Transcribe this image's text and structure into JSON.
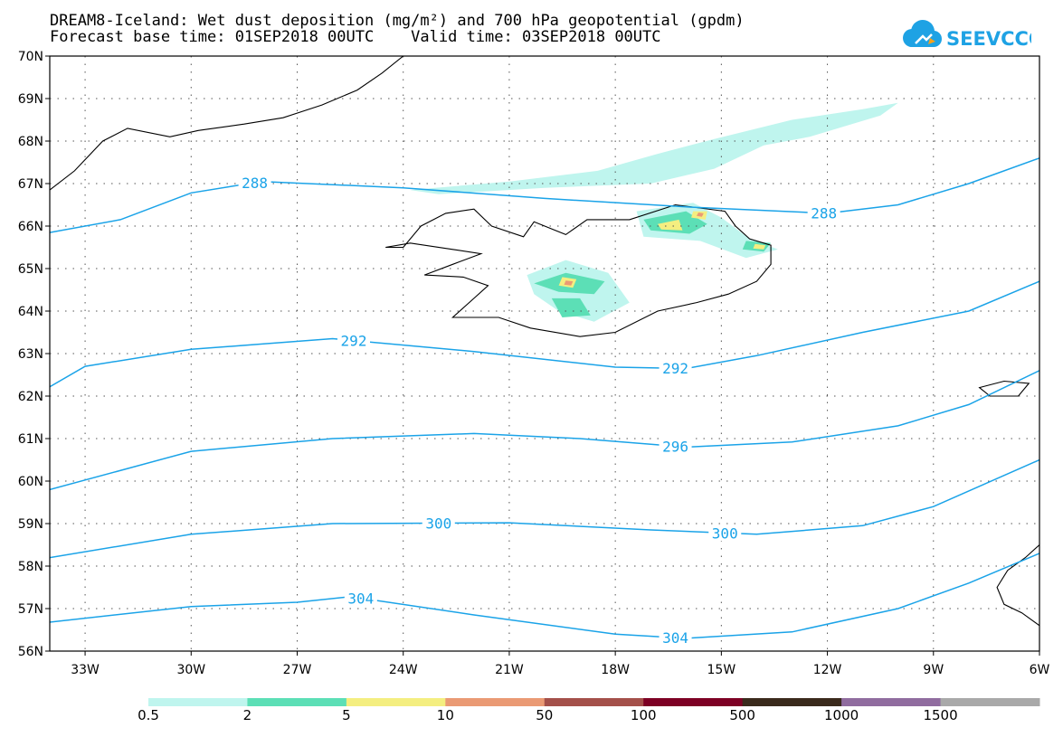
{
  "title_line1": "DREAM8-Iceland: Wet dust deposition (mg/m²) and 700 hPa geopotential (gpdm)",
  "title_line2": "Forecast base time: 01SEP2018 00UTC    Valid time: 03SEP2018 00UTC",
  "logo_text": "SEEVCCC",
  "colors": {
    "contour": "#1aa3e8",
    "coast": "#000000",
    "logo": "#1ea2e4"
  },
  "map": {
    "lon_range": [
      -34.0,
      -6.0
    ],
    "lat_range": [
      56,
      70
    ],
    "lon_ticks": [
      {
        "lon": -33,
        "label": "33W"
      },
      {
        "lon": -30,
        "label": "30W"
      },
      {
        "lon": -27,
        "label": "27W"
      },
      {
        "lon": -24,
        "label": "24W"
      },
      {
        "lon": -21,
        "label": "21W"
      },
      {
        "lon": -18,
        "label": "18W"
      },
      {
        "lon": -15,
        "label": "15W"
      },
      {
        "lon": -12,
        "label": "12W"
      },
      {
        "lon": -9,
        "label": "9W"
      },
      {
        "lon": -6,
        "label": "6W"
      }
    ],
    "lat_ticks": [
      {
        "lat": 56,
        "label": "56N"
      },
      {
        "lat": 57,
        "label": "57N"
      },
      {
        "lat": 58,
        "label": "58N"
      },
      {
        "lat": 59,
        "label": "59N"
      },
      {
        "lat": 60,
        "label": "60N"
      },
      {
        "lat": 61,
        "label": "61N"
      },
      {
        "lat": 62,
        "label": "62N"
      },
      {
        "lat": 63,
        "label": "63N"
      },
      {
        "lat": 64,
        "label": "64N"
      },
      {
        "lat": 65,
        "label": "65N"
      },
      {
        "lat": 66,
        "label": "66N"
      },
      {
        "lat": 67,
        "label": "67N"
      },
      {
        "lat": 68,
        "label": "68N"
      },
      {
        "lat": 69,
        "label": "69N"
      },
      {
        "lat": 70,
        "label": "70N"
      }
    ]
  },
  "contours": [
    {
      "value": "288",
      "label_lons": [
        -28.2,
        -12.1
      ],
      "points": [
        [
          -34.0,
          65.85
        ],
        [
          -32.0,
          66.15
        ],
        [
          -30.0,
          66.78
        ],
        [
          -28.0,
          67.05
        ],
        [
          -24.0,
          66.9
        ],
        [
          -20.0,
          66.65
        ],
        [
          -16.0,
          66.45
        ],
        [
          -12.0,
          66.3
        ],
        [
          -10.0,
          66.5
        ],
        [
          -8.0,
          67.0
        ],
        [
          -6.0,
          67.6
        ]
      ]
    },
    {
      "value": "292",
      "label_lons": [
        -25.4,
        -16.3
      ],
      "points": [
        [
          -34.0,
          62.22
        ],
        [
          -33.0,
          62.7
        ],
        [
          -30.0,
          63.1
        ],
        [
          -26.0,
          63.35
        ],
        [
          -22.0,
          63.05
        ],
        [
          -18.0,
          62.68
        ],
        [
          -16.0,
          62.65
        ],
        [
          -14.0,
          62.95
        ],
        [
          -11.0,
          63.5
        ],
        [
          -8.0,
          64.0
        ],
        [
          -6.0,
          64.7
        ]
      ]
    },
    {
      "value": "296",
      "label_lons": [
        -16.3
      ],
      "points": [
        [
          -34.0,
          59.8
        ],
        [
          -30.0,
          60.7
        ],
        [
          -26.0,
          61.0
        ],
        [
          -22.0,
          61.12
        ],
        [
          -19.0,
          61.0
        ],
        [
          -16.0,
          60.8
        ],
        [
          -13.0,
          60.92
        ],
        [
          -10.0,
          61.3
        ],
        [
          -8.0,
          61.8
        ],
        [
          -6.0,
          62.6
        ]
      ]
    },
    {
      "value": "300",
      "label_lons": [
        -23.0,
        -14.9
      ],
      "points": [
        [
          -34.0,
          58.2
        ],
        [
          -30.0,
          58.75
        ],
        [
          -26.0,
          59.0
        ],
        [
          -21.0,
          59.02
        ],
        [
          -17.0,
          58.85
        ],
        [
          -14.0,
          58.75
        ],
        [
          -11.0,
          58.95
        ],
        [
          -9.0,
          59.4
        ],
        [
          -6.0,
          60.5
        ]
      ]
    },
    {
      "value": "304",
      "label_lons": [
        -25.2,
        -16.3
      ],
      "points": [
        [
          -34.0,
          56.68
        ],
        [
          -30.0,
          57.05
        ],
        [
          -27.0,
          57.15
        ],
        [
          -25.5,
          57.28
        ],
        [
          -22.0,
          56.85
        ],
        [
          -18.0,
          56.4
        ],
        [
          -16.0,
          56.3
        ],
        [
          -13.0,
          56.45
        ],
        [
          -10.0,
          57.0
        ],
        [
          -8.0,
          57.6
        ],
        [
          -6.0,
          58.3
        ]
      ]
    }
  ],
  "colorbar": {
    "levels": [
      "0.5",
      "2",
      "5",
      "10",
      "50",
      "100",
      "500",
      "1000",
      "1500"
    ],
    "colors": [
      "#bff5ee",
      "#5cdfb6",
      "#f4ee80",
      "#ea9a74",
      "#a4504a",
      "#7d0024",
      "#3a2a1c",
      "#906c9f",
      "#a9a9a9"
    ]
  },
  "dust_patches": [
    {
      "level": 0,
      "points": [
        [
          -23.8,
          66.85
        ],
        [
          -21.0,
          67.05
        ],
        [
          -18.5,
          67.3
        ],
        [
          -16.8,
          67.7
        ],
        [
          -15.2,
          68.05
        ],
        [
          -13.0,
          68.5
        ],
        [
          -11.0,
          68.75
        ],
        [
          -10.0,
          68.9
        ],
        [
          -10.5,
          68.6
        ],
        [
          -12.5,
          68.1
        ],
        [
          -13.8,
          67.9
        ],
        [
          -15.2,
          67.35
        ],
        [
          -17.0,
          67.0
        ],
        [
          -20.0,
          66.9
        ],
        [
          -23.0,
          66.75
        ]
      ]
    },
    {
      "level": 0,
      "points": [
        [
          -17.4,
          66.35
        ],
        [
          -15.8,
          66.55
        ],
        [
          -15.0,
          66.2
        ],
        [
          -14.2,
          65.7
        ],
        [
          -13.4,
          65.45
        ],
        [
          -14.3,
          65.25
        ],
        [
          -15.6,
          65.65
        ],
        [
          -17.2,
          65.75
        ]
      ]
    },
    {
      "level": 0,
      "points": [
        [
          -20.5,
          64.85
        ],
        [
          -19.4,
          65.2
        ],
        [
          -18.2,
          64.9
        ],
        [
          -17.6,
          64.2
        ],
        [
          -18.6,
          63.75
        ],
        [
          -19.6,
          64.0
        ],
        [
          -20.3,
          64.4
        ]
      ]
    },
    {
      "level": 1,
      "points": [
        [
          -17.2,
          66.15
        ],
        [
          -16.0,
          66.35
        ],
        [
          -15.4,
          66.05
        ],
        [
          -15.9,
          65.82
        ],
        [
          -17.0,
          65.9
        ]
      ]
    },
    {
      "level": 1,
      "points": [
        [
          -20.3,
          64.65
        ],
        [
          -19.4,
          64.9
        ],
        [
          -18.3,
          64.7
        ],
        [
          -18.6,
          64.4
        ],
        [
          -19.6,
          64.45
        ]
      ]
    },
    {
      "level": 1,
      "points": [
        [
          -19.8,
          64.3
        ],
        [
          -19.0,
          64.3
        ],
        [
          -18.7,
          63.9
        ],
        [
          -19.5,
          63.85
        ]
      ]
    },
    {
      "level": 1,
      "points": [
        [
          -14.3,
          65.65
        ],
        [
          -13.6,
          65.6
        ],
        [
          -13.8,
          65.4
        ],
        [
          -14.4,
          65.45
        ]
      ]
    },
    {
      "level": 2,
      "points": [
        [
          -19.5,
          64.8
        ],
        [
          -19.1,
          64.75
        ],
        [
          -19.2,
          64.55
        ],
        [
          -19.6,
          64.6
        ]
      ]
    },
    {
      "level": 2,
      "points": [
        [
          -16.8,
          66.05
        ],
        [
          -16.2,
          66.15
        ],
        [
          -16.1,
          65.9
        ],
        [
          -16.7,
          65.92
        ]
      ]
    },
    {
      "level": 2,
      "points": [
        [
          -15.8,
          66.35
        ],
        [
          -15.4,
          66.35
        ],
        [
          -15.45,
          66.15
        ],
        [
          -15.85,
          66.2
        ]
      ]
    },
    {
      "level": 2,
      "points": [
        [
          -14.05,
          65.58
        ],
        [
          -13.75,
          65.55
        ],
        [
          -13.8,
          65.45
        ],
        [
          -14.1,
          65.47
        ]
      ]
    },
    {
      "level": 3,
      "points": [
        [
          -19.4,
          64.72
        ],
        [
          -19.2,
          64.7
        ],
        [
          -19.25,
          64.6
        ],
        [
          -19.45,
          64.62
        ]
      ]
    },
    {
      "level": 3,
      "points": [
        [
          -15.65,
          66.32
        ],
        [
          -15.5,
          66.3
        ],
        [
          -15.55,
          66.22
        ],
        [
          -15.7,
          66.24
        ]
      ]
    }
  ],
  "coastlines": [
    {
      "name": "iceland",
      "closed": true,
      "points": [
        [
          -24.0,
          65.5
        ],
        [
          -23.5,
          66.0
        ],
        [
          -22.8,
          66.3
        ],
        [
          -22.0,
          66.4
        ],
        [
          -21.5,
          66.0
        ],
        [
          -20.6,
          65.75
        ],
        [
          -20.3,
          66.1
        ],
        [
          -19.4,
          65.8
        ],
        [
          -18.8,
          66.15
        ],
        [
          -17.6,
          66.15
        ],
        [
          -16.3,
          66.5
        ],
        [
          -14.9,
          66.35
        ],
        [
          -14.6,
          66.0
        ],
        [
          -14.2,
          65.7
        ],
        [
          -13.6,
          65.55
        ],
        [
          -13.6,
          65.1
        ],
        [
          -14.0,
          64.7
        ],
        [
          -14.8,
          64.4
        ],
        [
          -15.7,
          64.2
        ],
        [
          -16.8,
          64.0
        ],
        [
          -18.0,
          63.5
        ],
        [
          -19.0,
          63.4
        ],
        [
          -20.4,
          63.6
        ],
        [
          -21.3,
          63.85
        ],
        [
          -22.6,
          63.85
        ],
        [
          -22.0,
          64.3
        ],
        [
          -21.6,
          64.6
        ],
        [
          -22.3,
          64.8
        ],
        [
          -23.4,
          64.85
        ],
        [
          -22.6,
          65.1
        ],
        [
          -21.8,
          65.35
        ],
        [
          -22.6,
          65.45
        ],
        [
          -23.8,
          65.6
        ],
        [
          -24.5,
          65.5
        ]
      ]
    },
    {
      "name": "greenland",
      "closed": false,
      "points": [
        [
          -34.0,
          66.85
        ],
        [
          -33.3,
          67.3
        ],
        [
          -32.5,
          68.0
        ],
        [
          -31.8,
          68.3
        ],
        [
          -30.6,
          68.1
        ],
        [
          -29.8,
          68.25
        ],
        [
          -28.5,
          68.4
        ],
        [
          -27.4,
          68.55
        ],
        [
          -26.3,
          68.85
        ],
        [
          -25.3,
          69.2
        ],
        [
          -24.6,
          69.6
        ],
        [
          -24.0,
          70.0
        ]
      ]
    },
    {
      "name": "faroe",
      "closed": true,
      "points": [
        [
          -7.7,
          62.2
        ],
        [
          -7.0,
          62.35
        ],
        [
          -6.3,
          62.3
        ],
        [
          -6.6,
          62.0
        ],
        [
          -7.4,
          62.0
        ]
      ]
    },
    {
      "name": "scotland",
      "closed": false,
      "points": [
        [
          -6.0,
          58.5
        ],
        [
          -6.4,
          58.2
        ],
        [
          -6.9,
          57.9
        ],
        [
          -7.2,
          57.5
        ],
        [
          -7.0,
          57.1
        ],
        [
          -6.5,
          56.9
        ],
        [
          -6.0,
          56.6
        ]
      ]
    }
  ]
}
